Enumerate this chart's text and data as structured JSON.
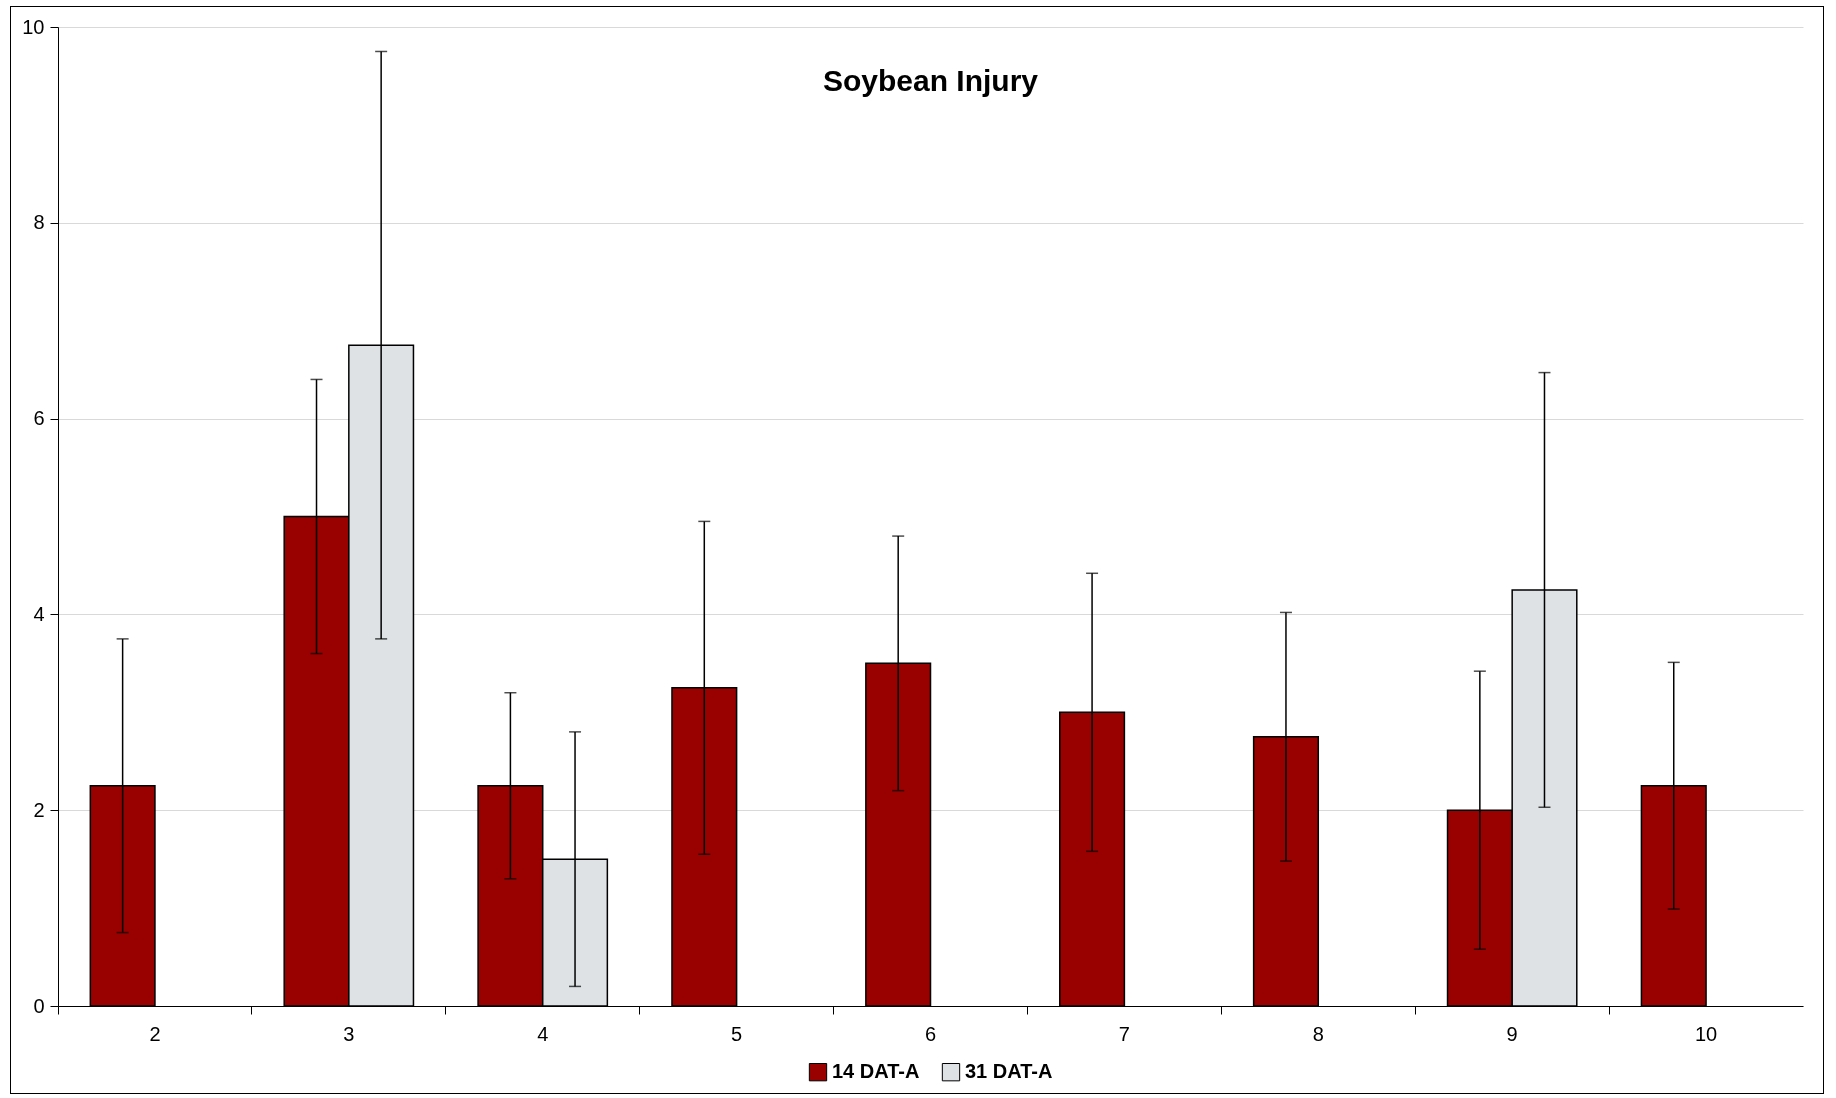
{
  "chart_data": {
    "type": "bar",
    "title": "Soybean Injury",
    "categories": [
      "2",
      "3",
      "4",
      "5",
      "6",
      "7",
      "8",
      "9",
      "10"
    ],
    "series": [
      {
        "name": "14 DAT-A",
        "color": "#990000",
        "values": [
          2.25,
          5,
          2.25,
          3.25,
          3.5,
          3,
          2.75,
          2,
          2.25
        ],
        "errors": [
          1.5,
          1.4,
          0.95,
          1.7,
          1.3,
          1.42,
          1.27,
          1.42,
          1.26
        ]
      },
      {
        "name": "31 DAT-A",
        "color": "#dee2e4",
        "values": [
          null,
          6.75,
          1.5,
          null,
          null,
          null,
          null,
          4.25,
          null
        ],
        "errors": [
          null,
          3,
          1.3,
          null,
          null,
          null,
          null,
          2.22,
          null
        ]
      }
    ],
    "ylim": [
      0,
      10
    ],
    "yticks": [
      0,
      2,
      4,
      6,
      8,
      10
    ],
    "grid": "y",
    "legend": "bottom"
  }
}
